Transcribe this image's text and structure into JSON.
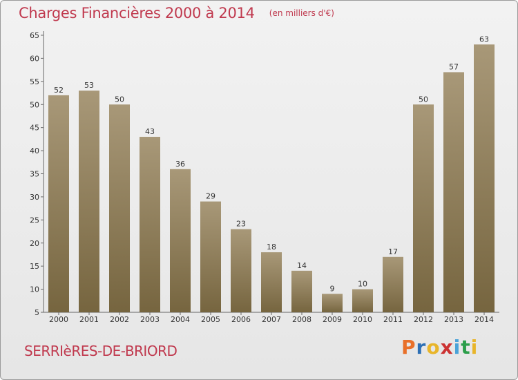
{
  "header": {
    "title": "Charges Financières 2000 à 2014",
    "subtitle": "(en milliers d'€)"
  },
  "footer": {
    "commune": "SERRIèRES-DE-BRIORD",
    "logo_text": "Proxiti",
    "logo_colors": [
      "#e8702a",
      "#2c6fb5",
      "#e8b52a",
      "#cc3333",
      "#4aa3d8",
      "#2c9e4a",
      "#e8b52a"
    ]
  },
  "colors": {
    "bar_top": "#a89878",
    "bar_bottom": "#76653f",
    "title": "#c0394e"
  },
  "chart_data": {
    "type": "bar",
    "title": "Charges Financières 2000 à 2014",
    "subtitle": "(en milliers d'€)",
    "categories": [
      "2000",
      "2001",
      "2002",
      "2003",
      "2004",
      "2005",
      "2006",
      "2007",
      "2008",
      "2009",
      "2010",
      "2011",
      "2012",
      "2013",
      "2014"
    ],
    "values": [
      52,
      53,
      50,
      43,
      36,
      29,
      23,
      18,
      14,
      9,
      10,
      17,
      50,
      57,
      63
    ],
    "yticks": [
      5,
      10,
      15,
      20,
      25,
      30,
      35,
      40,
      45,
      50,
      55,
      60,
      65
    ],
    "ylim": [
      5,
      65
    ],
    "grid": false,
    "xlabel": "",
    "ylabel": ""
  }
}
